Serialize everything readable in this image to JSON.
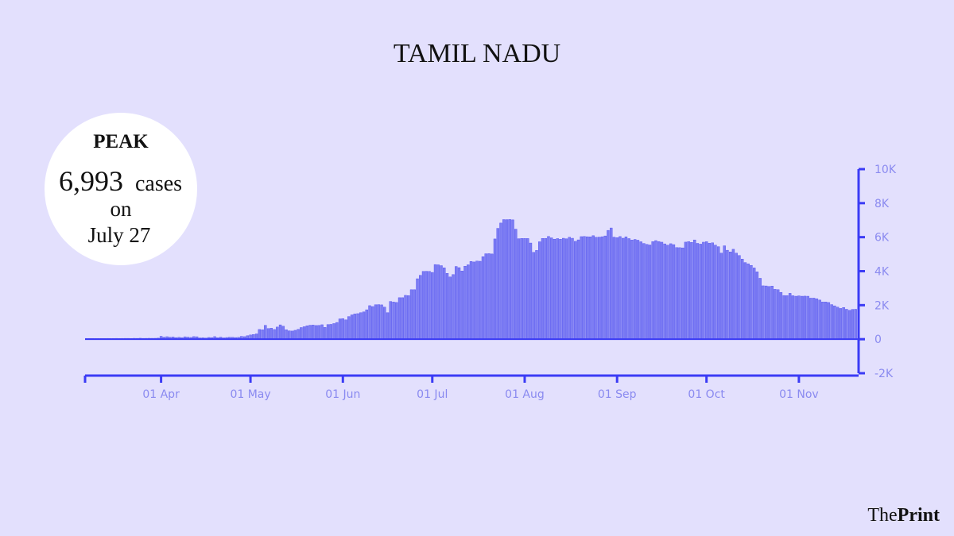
{
  "chart_data": {
    "type": "bar",
    "title": "TAMIL NADU",
    "annotation": {
      "label": "PEAK",
      "value": "6,993",
      "unit": "cases",
      "on": "on",
      "date": "July 27"
    },
    "logo": {
      "the": "The",
      "print": "Print"
    },
    "color": "#7c7cf2",
    "categories": [
      null,
      null,
      null,
      null,
      null,
      null,
      null,
      null,
      null,
      null,
      null,
      null,
      null,
      null,
      null,
      null,
      null,
      null,
      null,
      null,
      null,
      null,
      null,
      null,
      null,
      "01 Apr",
      null,
      null,
      null,
      null,
      null,
      null,
      null,
      null,
      null,
      null,
      null,
      null,
      null,
      null,
      null,
      null,
      null,
      null,
      null,
      null,
      null,
      null,
      null,
      null,
      null,
      null,
      null,
      null,
      null,
      "01 May",
      null,
      null,
      null,
      null,
      null,
      null,
      null,
      null,
      null,
      null,
      null,
      null,
      null,
      null,
      null,
      null,
      null,
      null,
      null,
      null,
      null,
      null,
      null,
      null,
      null,
      null,
      null,
      null,
      null,
      null,
      "01 Jun",
      null,
      null,
      null,
      null,
      null,
      null,
      null,
      null,
      null,
      null,
      null,
      null,
      null,
      null,
      null,
      null,
      null,
      null,
      null,
      null,
      null,
      null,
      null,
      null,
      null,
      null,
      null,
      null,
      null,
      "01 Jul",
      null,
      null,
      null,
      null,
      null,
      null,
      null,
      null,
      null,
      null,
      null,
      null,
      null,
      null,
      null,
      null,
      null,
      null,
      null,
      null,
      null,
      null,
      null,
      null,
      null,
      null,
      null,
      null,
      null,
      null,
      "01 Aug",
      null,
      null,
      null,
      null,
      null,
      null,
      null,
      null,
      null,
      null,
      null,
      null,
      null,
      null,
      null,
      null,
      null,
      null,
      null,
      null,
      null,
      null,
      null,
      null,
      null,
      null,
      null,
      null,
      null,
      null,
      "01 Sep",
      null,
      null,
      null,
      null,
      null,
      null,
      null,
      null,
      null,
      null,
      null,
      null,
      null,
      null,
      null,
      null,
      null,
      null,
      null,
      null,
      null,
      null,
      null,
      null,
      null,
      null,
      null,
      null,
      null,
      "01 Oct",
      null,
      null,
      null,
      null,
      null,
      null,
      null,
      null,
      null,
      null,
      null,
      null,
      null,
      null,
      null,
      null,
      null,
      null,
      null,
      null,
      null,
      null,
      null,
      null,
      null,
      null,
      null,
      null,
      null,
      null,
      "01 Nov",
      null,
      null,
      null,
      null,
      null,
      null,
      null,
      null,
      null,
      null,
      null,
      null,
      null,
      null,
      null,
      null,
      null,
      null,
      null
    ],
    "values": [
      0,
      0,
      0,
      0,
      0,
      0,
      0,
      1,
      0,
      0,
      2,
      0,
      1,
      3,
      3,
      0,
      6,
      3,
      11,
      3,
      5,
      8,
      6,
      8,
      17,
      124,
      75,
      102,
      74,
      86,
      50,
      69,
      48,
      96,
      77,
      58,
      106,
      98,
      31,
      38,
      25,
      56,
      49,
      105,
      43,
      76,
      33,
      54,
      72,
      66,
      52,
      64,
      121,
      104,
      161,
      203,
      231,
      266,
      527,
      508,
      771,
      580,
      600,
      526,
      669,
      798,
      716,
      509,
      447,
      434,
      477,
      536,
      639,
      688,
      743,
      776,
      786,
      759,
      765,
      805,
      646,
      817,
      827,
      874,
      938,
      1149,
      1162,
      1091,
      1286,
      1384,
      1438,
      1458,
      1515,
      1562,
      1685,
      1927,
      1875,
      1982,
      1989,
      1974,
      1843,
      1515,
      2174,
      2141,
      2115,
      2396,
      2396,
      2532,
      2516,
      2865,
      2865,
      3509,
      3713,
      3940,
      3949,
      3943,
      3882,
      4343,
      4329,
      4280,
      4150,
      3827,
      3616,
      3756,
      4231,
      4163,
      3965,
      4244,
      4328,
      4526,
      4496,
      4549,
      4538,
      4807,
      4979,
      4985,
      4965,
      5849,
      6472,
      6785,
      6988,
      6986,
      6993,
      6972,
      6426,
      5864,
      5881,
      5879,
      5875,
      5609,
      5063,
      5175,
      5684,
      5880,
      5883,
      5994,
      5914,
      5834,
      5871,
      5835,
      5890,
      5860,
      5950,
      5890,
      5709,
      5795,
      5986,
      5995,
      5980,
      5975,
      6040,
      5951,
      5958,
      5981,
      6026,
      6352,
      6495,
      5956,
      5928,
      5990,
      5892,
      5976,
      5870,
      5783,
      5820,
      5776,
      5684,
      5584,
      5528,
      5495,
      5693,
      5752,
      5697,
      5660,
      5560,
      5488,
      5569,
      5516,
      5344,
      5337,
      5325,
      5663,
      5692,
      5647,
      5791,
      5589,
      5546,
      5659,
      5688,
      5595,
      5622,
      5489,
      5395,
      5017,
      5447,
      5185,
      5088,
      5242,
      5015,
      4879,
      4666,
      4462,
      4389,
      4295,
      4145,
      3914,
      3536,
      3094,
      3086,
      3057,
      3077,
      2886,
      2869,
      2708,
      2522,
      2516,
      2652,
      2511,
      2481,
      2504,
      2481,
      2487,
      2481,
      2369,
      2370,
      2334,
      2257,
      2143,
      2146,
      2112,
      1989,
      1917,
      1838,
      1763,
      1819,
      1714,
      1652,
      1707,
      1714
    ],
    "ylim": [
      -2000,
      10000
    ],
    "yticks": [
      {
        "value": -2000,
        "label": "-2K"
      },
      0,
      {
        "value": 2000,
        "label": "2K"
      },
      {
        "value": 4000,
        "label": "4K"
      },
      {
        "value": 6000,
        "label": "6K"
      },
      {
        "value": 8000,
        "label": "8K"
      },
      {
        "value": 10000,
        "label": "10K"
      }
    ]
  }
}
